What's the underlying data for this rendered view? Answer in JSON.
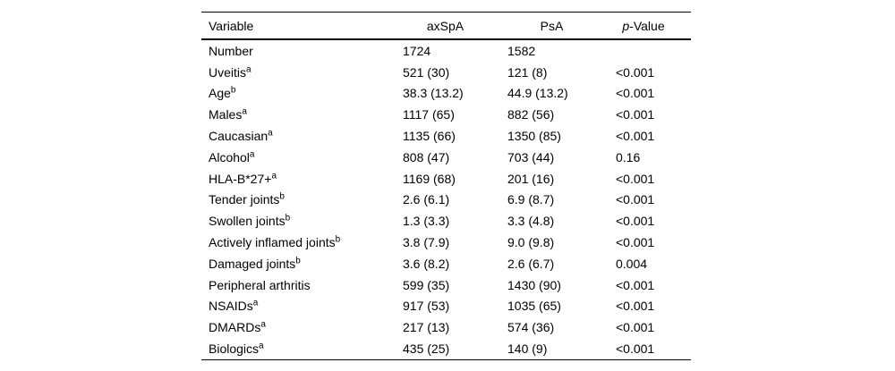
{
  "page": {
    "background_color": "#ffffff",
    "text_color": "#000000",
    "rule_color": "#000000"
  },
  "table": {
    "columns": [
      {
        "label": "Variable"
      },
      {
        "label": "axSpA"
      },
      {
        "label": "PsA"
      },
      {
        "label_italic": "p",
        "label_rest": "-Value"
      }
    ],
    "rows": [
      {
        "variable": "Number",
        "sup": "",
        "axspa": "1724",
        "psa": "1582",
        "pvalue": ""
      },
      {
        "variable": "Uveitis",
        "sup": "a",
        "axspa": "521 (30)",
        "psa": "121 (8)",
        "pvalue": "<0.001"
      },
      {
        "variable": "Age",
        "sup": "b",
        "axspa": "38.3 (13.2)",
        "psa": "44.9 (13.2)",
        "pvalue": "<0.001"
      },
      {
        "variable": "Males",
        "sup": "a",
        "axspa": "1117 (65)",
        "psa": "882 (56)",
        "pvalue": "<0.001"
      },
      {
        "variable": "Caucasian",
        "sup": "a",
        "axspa": "1135 (66)",
        "psa": "1350 (85)",
        "pvalue": "<0.001"
      },
      {
        "variable": "Alcohol",
        "sup": "a",
        "axspa": "808 (47)",
        "psa": "703 (44)",
        "pvalue": "0.16"
      },
      {
        "variable": "HLA-B*27+",
        "sup": "a",
        "axspa": "1169 (68)",
        "psa": "201 (16)",
        "pvalue": "<0.001"
      },
      {
        "variable": "Tender joints",
        "sup": "b",
        "axspa": "2.6 (6.1)",
        "psa": "6.9 (8.7)",
        "pvalue": "<0.001"
      },
      {
        "variable": "Swollen joints",
        "sup": "b",
        "axspa": "1.3 (3.3)",
        "psa": "3.3 (4.8)",
        "pvalue": "<0.001"
      },
      {
        "variable": "Actively inflamed joints",
        "sup": "b",
        "axspa": "3.8 (7.9)",
        "psa": "9.0 (9.8)",
        "pvalue": "<0.001"
      },
      {
        "variable": "Damaged joints",
        "sup": "b",
        "axspa": "3.6 (8.2)",
        "psa": "2.6 (6.7)",
        "pvalue": "0.004"
      },
      {
        "variable": "Peripheral arthritis",
        "sup": "",
        "axspa": "599 (35)",
        "psa": "1430 (90)",
        "pvalue": "<0.001"
      },
      {
        "variable": "NSAIDs",
        "sup": "a",
        "axspa": "917 (53)",
        "psa": "1035 (65)",
        "pvalue": "<0.001"
      },
      {
        "variable": "DMARDs",
        "sup": "a",
        "axspa": "217 (13)",
        "psa": "574 (36)",
        "pvalue": "<0.001"
      },
      {
        "variable": "Biologics",
        "sup": "a",
        "axspa": "435 (25)",
        "psa": "140 (9)",
        "pvalue": "<0.001"
      }
    ]
  }
}
